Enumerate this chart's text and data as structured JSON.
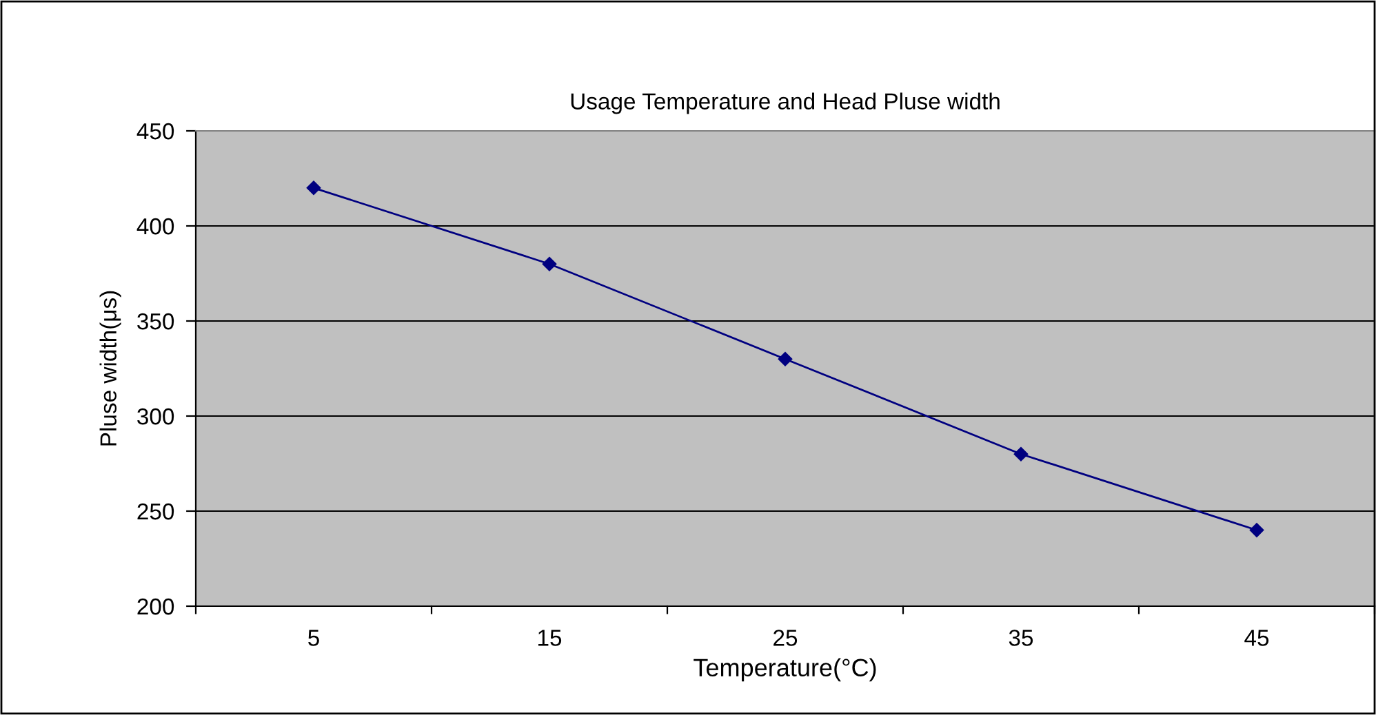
{
  "chart_data": {
    "type": "line",
    "title": "Usage Temperature and Head Pluse width",
    "xlabel": "Temperature(°C)",
    "ylabel": "Pluse width(μs)",
    "categories": [
      "5",
      "15",
      "25",
      "35",
      "45"
    ],
    "series": [
      {
        "color": "#000080",
        "values": [
          420,
          380,
          330,
          280,
          240
        ]
      }
    ],
    "ylim": [
      200,
      450
    ],
    "yticks": [
      200,
      250,
      300,
      350,
      400,
      450
    ],
    "grid": "y",
    "marker": "diamond",
    "line_style": "solid",
    "legend": false
  }
}
